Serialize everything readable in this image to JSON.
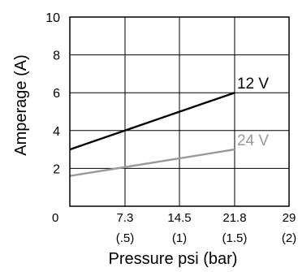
{
  "chart_data": {
    "type": "line",
    "title": "",
    "xlabel": "Pressure psi (bar)",
    "ylabel": "Amperage (A)",
    "xlim": [
      0,
      29
    ],
    "ylim": [
      0,
      10
    ],
    "x_ticks": [
      {
        "value": 0,
        "psi": "0",
        "bar": ""
      },
      {
        "value": 7.3,
        "psi": "7.3",
        "bar": "(.5)"
      },
      {
        "value": 14.5,
        "psi": "14.5",
        "bar": "(1)"
      },
      {
        "value": 21.8,
        "psi": "21.8",
        "bar": "(1.5)"
      },
      {
        "value": 29,
        "psi": "29",
        "bar": "(2)"
      }
    ],
    "y_ticks": [
      {
        "value": 2,
        "label": "2"
      },
      {
        "value": 4,
        "label": "4"
      },
      {
        "value": 6,
        "label": "6"
      },
      {
        "value": 8,
        "label": "8"
      },
      {
        "value": 10,
        "label": "10"
      }
    ],
    "grid": true,
    "series": [
      {
        "name": "12 V",
        "color": "#000000",
        "x": [
          0,
          21.8
        ],
        "y": [
          3.0,
          6.0
        ]
      },
      {
        "name": "24 V",
        "color": "#999999",
        "x": [
          0,
          21.8
        ],
        "y": [
          1.6,
          3.0
        ]
      }
    ]
  }
}
